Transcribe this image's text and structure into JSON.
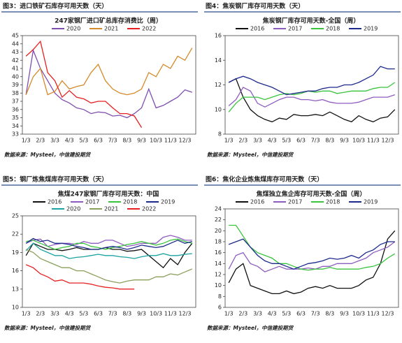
{
  "chart_data": [
    {
      "type": "line",
      "caption": "图3：进口铁矿石库存可用天数（天）",
      "title": "247家钢厂进口矿总库存消费比（周）",
      "source": "数据来源：Mysteel，中信建投期货",
      "categories": [
        "1/3",
        null,
        "2/3",
        null,
        "3/3",
        null,
        "4/3",
        null,
        "5/3",
        null,
        "6/3",
        null,
        "7/3",
        null,
        "8/3",
        null,
        "9/3",
        null,
        "10/3",
        null,
        "11/3",
        null,
        "12/3",
        null
      ],
      "ylim": [
        33,
        45
      ],
      "yticks": [
        33,
        34,
        35,
        36,
        37,
        38,
        39,
        40,
        41,
        42,
        43,
        44,
        45
      ],
      "grid": false,
      "series": [
        {
          "name": "2020",
          "color": "#7f4fb0",
          "values": [
            37.8,
            43.2,
            41,
            39.5,
            38,
            37.2,
            36.8,
            36.2,
            36,
            35.5,
            35.7,
            35.6,
            35.2,
            35.3,
            35.0,
            35.5,
            36.2,
            38.5,
            36.2,
            36.5,
            37,
            37.5,
            38.4,
            38.1
          ]
        },
        {
          "name": "2021",
          "color": "#d58a2a",
          "values": [
            37.8,
            40,
            41,
            37.8,
            38.2,
            39.5,
            38.5,
            38.8,
            39,
            40.5,
            41.5,
            39.5,
            38.5,
            38,
            37.8,
            38,
            38.5,
            40.5,
            40,
            41.5,
            41,
            42.5,
            42,
            43.5
          ]
        },
        {
          "name": "2022",
          "color": "#e62020",
          "values": [
            42.5,
            43.3,
            44.3,
            40.5,
            39.5,
            37.5,
            38.3,
            37.5,
            37.3,
            36.8,
            37,
            37,
            36.2,
            35.5,
            35.5,
            35.2,
            33.8,
            null,
            null,
            null,
            null,
            null,
            null,
            null
          ]
        }
      ]
    },
    {
      "type": "line",
      "caption": "图4：焦炭钢厂库存可用天数（天）",
      "title": "焦炭钢厂库存可用天数-全国（周）",
      "source": "数据来源：Mysteel，中信建投期货",
      "categories": [
        "1/3",
        null,
        "2/3",
        null,
        "3/3",
        null,
        "4/3",
        null,
        "5/3",
        null,
        "6/3",
        null,
        "7/3",
        null,
        "8/3",
        null,
        "9/3",
        null,
        "10/3",
        null,
        "11/3",
        null,
        "12/3",
        null
      ],
      "ylim": [
        8,
        16
      ],
      "yticks": [
        8,
        10,
        12,
        14,
        16
      ],
      "grid": false,
      "series": [
        {
          "name": "2016",
          "color": "#111111",
          "values": [
            12.2,
            12.5,
            11,
            10,
            9.5,
            9.2,
            9,
            9.3,
            9.2,
            9.6,
            9.5,
            9.5,
            9.6,
            9.5,
            9.8,
            9.5,
            9.2,
            9,
            9.5,
            9.2,
            9,
            9.3,
            9.4,
            10
          ]
        },
        {
          "name": "2017",
          "color": "#8e5cc0",
          "values": [
            10.3,
            10.8,
            11.8,
            11.5,
            10.5,
            10.2,
            10.5,
            10.8,
            11,
            11,
            10.8,
            10.8,
            10.7,
            10.8,
            10.6,
            10.5,
            10.5,
            10.5,
            10.6,
            10.8,
            11,
            11,
            11,
            11.2
          ]
        },
        {
          "name": "2018",
          "color": "#39c43c",
          "values": [
            9.8,
            10.5,
            11,
            11,
            11,
            10.8,
            11,
            11.2,
            11.3,
            11.2,
            11.3,
            11.5,
            11.4,
            11.5,
            11.5,
            11.3,
            11.4,
            11.5,
            11.5,
            11.5,
            11.7,
            11.8,
            11.8,
            12.2
          ]
        },
        {
          "name": "2019",
          "color": "#1c2a8c",
          "values": [
            12.2,
            12.5,
            12.7,
            12.5,
            12.2,
            12,
            11.8,
            11.5,
            11.2,
            11.3,
            11.4,
            11.5,
            11.5,
            11.7,
            11.8,
            11.8,
            12,
            12,
            12.2,
            12.5,
            12.8,
            13.5,
            13.3,
            13.3
          ]
        }
      ]
    },
    {
      "type": "line",
      "caption": "图5：钢厂炼焦煤库存可用天数（天）",
      "title": "焦煤247家钢厂库存可用天数：中国",
      "source": "数据来源：Mysteel，中信建投期货",
      "categories": [
        "1/3",
        null,
        "2/3",
        null,
        "3/3",
        null,
        "4/3",
        null,
        "5/3",
        null,
        "6/3",
        null,
        "7/3",
        null,
        "8/3",
        null,
        "9/3",
        null,
        "10/3",
        null,
        "11/3",
        null,
        "12/3",
        null
      ],
      "ylim": [
        10,
        25
      ],
      "yticks": [
        10,
        13,
        16,
        19,
        22,
        25
      ],
      "grid": false,
      "series": [
        {
          "name": "2016",
          "color": "#111111",
          "values": [
            18.5,
            20.5,
            20,
            19.5,
            19.5,
            19.3,
            19.5,
            19.8,
            19.5,
            19.5,
            19.5,
            19.8,
            19.5,
            19.5,
            19.2,
            19.3,
            19.5,
            18.5,
            17.5,
            16.5,
            18,
            17,
            19,
            20.5
          ]
        },
        {
          "name": "2017",
          "color": "#8e5cc0",
          "values": [
            20.5,
            21,
            21.2,
            20,
            20.3,
            20.5,
            20.5,
            20.3,
            20.8,
            20.5,
            20.5,
            21,
            21,
            20.5,
            20,
            20.2,
            20.5,
            20.5,
            20.5,
            21.5,
            21.8,
            21.5,
            21,
            21
          ]
        },
        {
          "name": "2018",
          "color": "#39c43c",
          "values": [
            20.8,
            21,
            20.5,
            20,
            19.5,
            19.8,
            20,
            20.5,
            20.5,
            20,
            19.8,
            19.5,
            19.8,
            20,
            20.3,
            20.5,
            20.8,
            20.5,
            20.2,
            20.5,
            21,
            21.2,
            20.8,
            20.5
          ]
        },
        {
          "name": "2019",
          "color": "#1c2a8c",
          "values": [
            20.5,
            21.3,
            20.8,
            21,
            20.5,
            20.5,
            20.3,
            20,
            19.8,
            19.5,
            19.5,
            19.8,
            20,
            19.8,
            19.5,
            19.8,
            20.2,
            20,
            19.8,
            20,
            20.5,
            21,
            20.5,
            20.8
          ]
        },
        {
          "name": "2020",
          "color": "#1aa3a0",
          "values": [
            19.3,
            20.5,
            19.5,
            19,
            18.5,
            18.5,
            18,
            18.2,
            18.3,
            18.5,
            18.7,
            18.5,
            18.5,
            18.3,
            18.2,
            18,
            18.3,
            18.5,
            18.5,
            18.8,
            18.5,
            18.5,
            18.7,
            18.8
          ]
        },
        {
          "name": "2021",
          "color": "#8aa05a",
          "values": [
            19.5,
            19,
            18,
            17.5,
            17,
            16.5,
            16.5,
            16,
            16,
            15.5,
            15,
            14.5,
            14.2,
            14,
            14.3,
            14.5,
            14.5,
            14.5,
            15,
            15,
            15.5,
            15.3,
            15.8,
            16.3
          ]
        },
        {
          "name": "2022",
          "color": "#e62020",
          "values": [
            17,
            16.5,
            15.5,
            15,
            14.3,
            14.5,
            14,
            14,
            14,
            13.8,
            13.5,
            13.3,
            13.2,
            13,
            13,
            13,
            null,
            null,
            null,
            null,
            null,
            null,
            null,
            null
          ]
        }
      ]
    },
    {
      "type": "line",
      "caption": "图6：焦化企业炼焦煤库存可用天数（天）",
      "title": "焦煤独立焦企库存可用天数-全国（周）",
      "source": "数据来源：Mysteel，中信建投期货",
      "categories": [
        "1/3",
        null,
        "2/3",
        null,
        "3/3",
        null,
        "4/3",
        null,
        "5/3",
        null,
        "6/3",
        null,
        "7/3",
        null,
        "8/3",
        null,
        "9/3",
        null,
        "10/3",
        null,
        "11/3",
        null,
        "12/3",
        null
      ],
      "ylim": [
        6,
        24
      ],
      "yticks": [
        6,
        8,
        10,
        12,
        14,
        16,
        18,
        20,
        22,
        24
      ],
      "grid": false,
      "series": [
        {
          "name": "2016",
          "color": "#111111",
          "values": [
            10.5,
            13,
            14,
            10,
            9.5,
            9,
            8.5,
            8.5,
            9,
            8.5,
            8.8,
            9.5,
            9.8,
            9.5,
            10,
            9.5,
            9.5,
            9.5,
            10,
            11,
            11.5,
            14,
            18.5,
            20
          ]
        },
        {
          "name": "2017",
          "color": "#8e5cc0",
          "values": [
            13,
            15.5,
            16,
            14,
            13.5,
            12.5,
            13,
            13.5,
            13,
            13,
            13,
            13.2,
            13,
            13.5,
            13.5,
            14,
            14,
            14,
            14.5,
            15,
            16,
            16.5,
            17,
            18
          ]
        },
        {
          "name": "2018",
          "color": "#39c43c",
          "values": [
            21,
            21,
            19,
            17,
            16,
            15.5,
            15,
            14,
            14,
            13.5,
            13,
            12.8,
            13,
            13,
            13.3,
            13,
            13,
            13,
            13,
            13.3,
            13.5,
            14,
            15,
            15.8
          ]
        },
        {
          "name": "2019",
          "color": "#1c2a8c",
          "values": [
            17.5,
            18,
            18.5,
            17,
            15.5,
            14.5,
            14,
            14,
            13.5,
            13,
            13.5,
            14,
            14.2,
            14.5,
            15,
            14.8,
            15,
            15.5,
            15,
            16,
            16.5,
            17.5,
            18,
            18
          ]
        }
      ]
    }
  ]
}
